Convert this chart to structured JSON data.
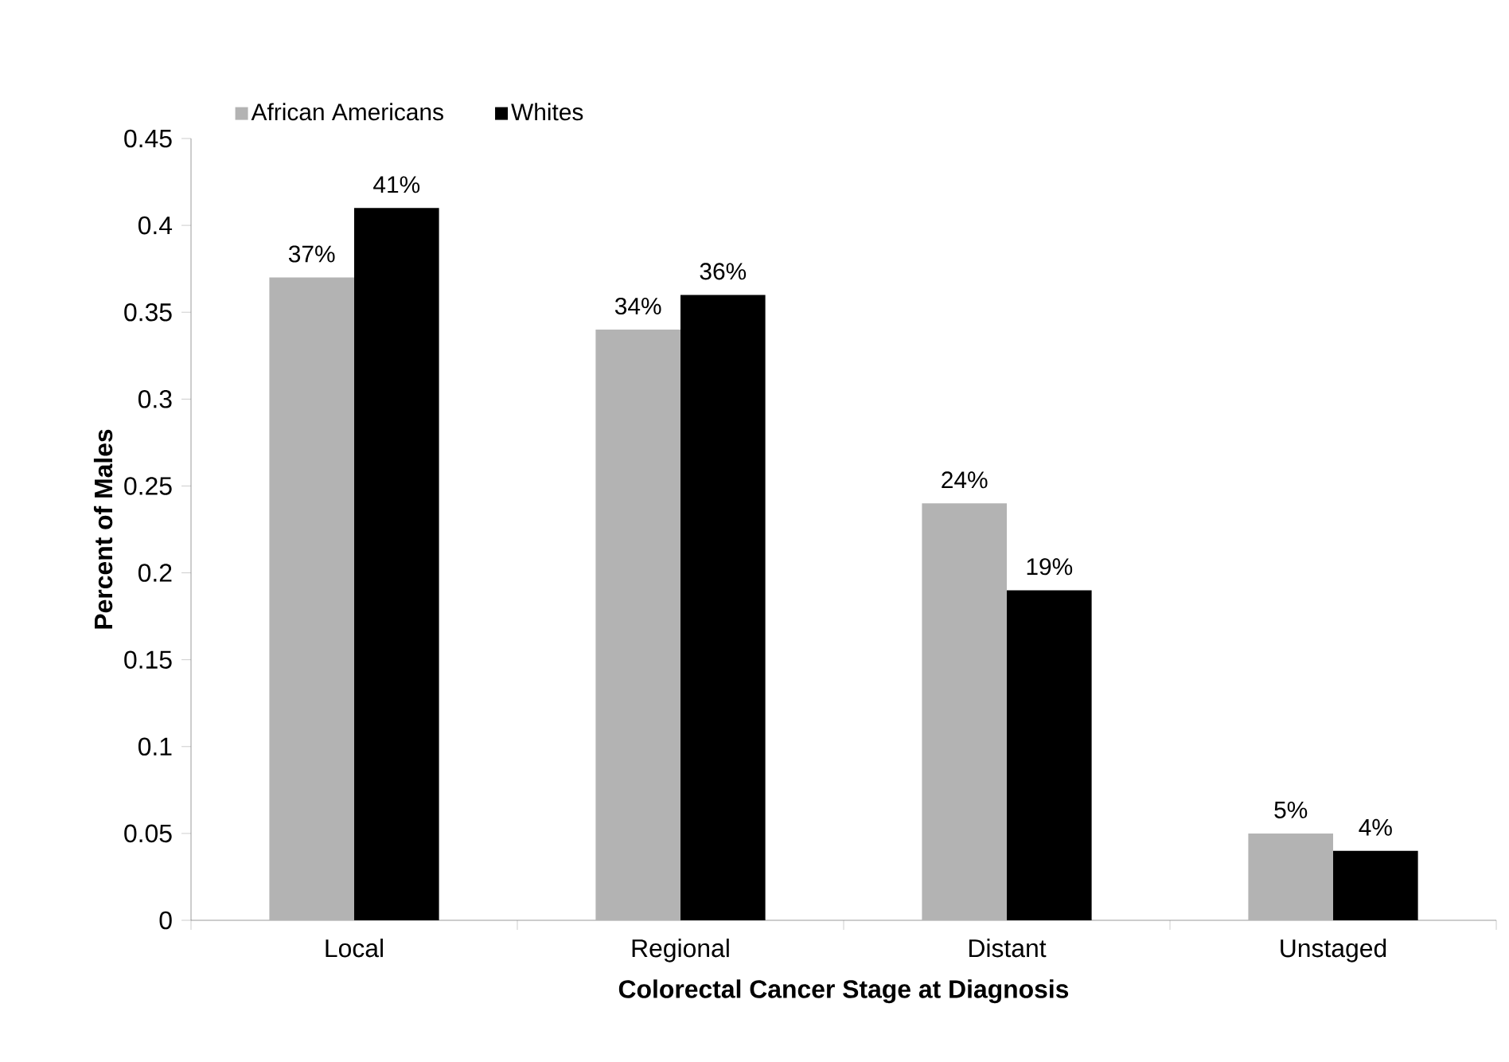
{
  "chart_data": {
    "type": "bar",
    "xlabel": "Colorectal Cancer Stage at Diagnosis",
    "ylabel": "Percent of Males",
    "categories": [
      "Local",
      "Regional",
      "Distant",
      "Unstaged"
    ],
    "series": [
      {
        "name": "African Americans",
        "color": "#b3b3b3",
        "values": [
          0.37,
          0.34,
          0.24,
          0.05
        ],
        "value_labels": [
          "37%",
          "34%",
          "24%",
          "5%"
        ]
      },
      {
        "name": "Whites",
        "color": "#000000",
        "values": [
          0.41,
          0.36,
          0.19,
          0.04
        ],
        "value_labels": [
          "41%",
          "36%",
          "19%",
          "4%"
        ]
      }
    ],
    "ylim": [
      0,
      0.45
    ],
    "yticks": [
      0,
      0.05,
      0.1,
      0.15,
      0.2,
      0.25,
      0.3,
      0.35,
      0.4,
      0.45
    ],
    "grid": false,
    "legend": "top left"
  }
}
